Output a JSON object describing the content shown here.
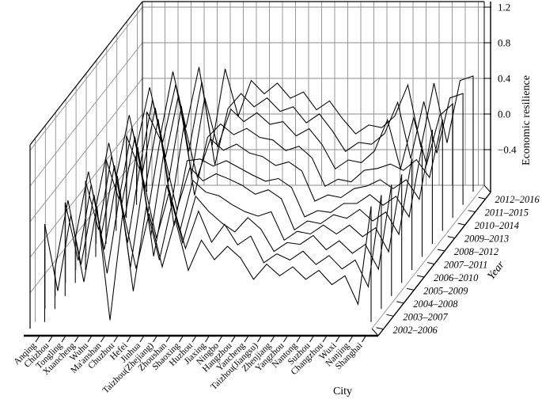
{
  "figure": {
    "background": "#ffffff",
    "line_color": "#000000",
    "grid_color": "#8e8e8e"
  },
  "chart_data": {
    "type": "3d-waterfall-line",
    "title": "",
    "xlabel": "City",
    "ylabel": "Year",
    "zlabel": "Economic resilience",
    "zlim": [
      -0.8,
      1.26
    ],
    "z_ticks": [
      1.2,
      0.8,
      0.4,
      0.0,
      -0.4
    ],
    "z_tick_labels": [
      "1.2",
      "0.8",
      "0.4",
      "0.0",
      "−0.4"
    ],
    "grid": true,
    "legend": false,
    "categories": [
      "Anqing",
      "Chizhou",
      "Tongling",
      "Xuancheng",
      "Wuhu",
      "Ma'anshan",
      "Chuzhou",
      "Hefei",
      "Jinhua",
      "Taizhou(Zhejiang)",
      "Zhoushan",
      "Shaoxing",
      "Huzhou",
      "Jiaxing",
      "Ningbo",
      "Hangzhou",
      "Yancheng",
      "Taizhou(Jiangsu)",
      "Zhenjiang",
      "Yangzhou",
      "Nantong",
      "Suzhou",
      "Changzhou",
      "Wuxi",
      "Nanjing",
      "Shanghai"
    ],
    "series": [
      {
        "name": "2002–2006",
        "values": [
          0.3,
          -0.45,
          0.4,
          -0.35,
          0.5,
          -0.78,
          0.45,
          -0.2,
          0.42,
          -0.18,
          0.35,
          -0.22,
          0.12,
          -0.1,
          0.05,
          -0.08,
          -0.32,
          -0.15,
          -0.28,
          -0.18,
          -0.32,
          -0.22,
          -0.38,
          -0.28,
          -0.6,
          0.5
        ]
      },
      {
        "name": "2003–2007",
        "values": [
          -0.35,
          0.42,
          -0.3,
          0.48,
          -0.4,
          0.52,
          -0.6,
          0.35,
          -0.25,
          0.4,
          -0.12,
          0.3,
          -0.05,
          0.15,
          -0.08,
          0.02,
          -0.28,
          -0.18,
          -0.25,
          -0.15,
          -0.3,
          -0.2,
          -0.35,
          -0.25,
          -0.55,
          0.48
        ]
      },
      {
        "name": "2004–2008",
        "values": [
          0.25,
          -0.4,
          0.45,
          -0.28,
          0.55,
          -0.48,
          0.5,
          -0.15,
          0.38,
          -0.2,
          0.32,
          0.15,
          0.02,
          -0.08,
          0.08,
          -0.05,
          -0.3,
          -0.2,
          -0.22,
          -0.12,
          -0.28,
          -0.18,
          -0.32,
          -0.22,
          -0.5,
          0.45
        ]
      },
      {
        "name": "2005–2009",
        "values": [
          -0.3,
          0.45,
          -0.25,
          0.52,
          -0.35,
          0.55,
          -0.5,
          0.3,
          -0.22,
          0.35,
          0.22,
          0.18,
          0.08,
          0.0,
          -0.05,
          0.0,
          -0.32,
          -0.22,
          -0.25,
          -0.15,
          -0.25,
          -0.15,
          -0.28,
          -0.18,
          -0.45,
          0.42
        ]
      },
      {
        "name": "2006–2010",
        "values": [
          0.2,
          -0.35,
          0.48,
          -0.22,
          0.58,
          -0.42,
          0.52,
          -0.12,
          0.35,
          0.2,
          0.28,
          0.22,
          0.15,
          0.05,
          0.1,
          0.0,
          -0.35,
          -0.25,
          -0.28,
          -0.18,
          -0.22,
          -0.12,
          -0.25,
          -0.15,
          -0.4,
          0.45
        ]
      },
      {
        "name": "2007–2011",
        "values": [
          -0.25,
          0.48,
          -0.2,
          0.55,
          -0.3,
          0.58,
          -0.45,
          0.28,
          0.3,
          0.22,
          0.28,
          0.2,
          0.12,
          0.05,
          0.08,
          -0.02,
          -0.35,
          -0.28,
          -0.3,
          -0.2,
          -0.2,
          -0.1,
          -0.22,
          -0.12,
          -0.35,
          0.45
        ]
      },
      {
        "name": "2008–2012",
        "values": [
          0.15,
          -0.3,
          0.5,
          -0.18,
          0.6,
          -0.38,
          0.55,
          -0.05,
          0.38,
          0.25,
          0.32,
          0.22,
          0.18,
          0.08,
          0.12,
          0.02,
          -0.32,
          -0.25,
          -0.28,
          -0.18,
          -0.15,
          -0.08,
          -0.18,
          -0.08,
          -0.3,
          0.48
        ]
      },
      {
        "name": "2009–2013",
        "values": [
          -0.2,
          0.5,
          -0.15,
          0.58,
          -0.25,
          0.6,
          -0.4,
          0.25,
          0.4,
          0.28,
          0.35,
          0.25,
          0.22,
          0.1,
          0.15,
          0.02,
          -0.3,
          -0.22,
          -0.25,
          -0.12,
          -0.1,
          -0.05,
          -0.12,
          0.0,
          -0.2,
          0.45
        ]
      },
      {
        "name": "2010–2014",
        "values": [
          0.12,
          -0.25,
          0.52,
          -0.12,
          0.58,
          -0.32,
          0.55,
          0.0,
          0.42,
          0.28,
          0.38,
          0.25,
          0.28,
          0.12,
          0.2,
          0.02,
          -0.25,
          -0.15,
          -0.18,
          -0.05,
          0.3,
          -0.25,
          0.32,
          -0.2,
          0.35,
          0.48
        ]
      },
      {
        "name": "2011–2015",
        "values": [
          -0.15,
          0.52,
          -0.1,
          0.55,
          -0.2,
          0.58,
          -0.35,
          0.28,
          0.45,
          0.3,
          0.4,
          0.25,
          0.3,
          0.12,
          0.22,
          0.03,
          -0.2,
          -0.1,
          -0.12,
          0.0,
          0.35,
          -0.28,
          0.36,
          -0.22,
          0.4,
          0.45
        ]
      },
      {
        "name": "2012–2016",
        "values": [
          0.1,
          -0.2,
          0.55,
          -0.08,
          0.6,
          -0.28,
          0.58,
          0.05,
          0.45,
          0.3,
          0.42,
          0.25,
          0.32,
          0.12,
          0.22,
          0.02,
          -0.15,
          -0.05,
          -0.08,
          0.05,
          0.4,
          -0.3,
          0.42,
          -0.25,
          0.45,
          0.5
        ]
      }
    ]
  }
}
